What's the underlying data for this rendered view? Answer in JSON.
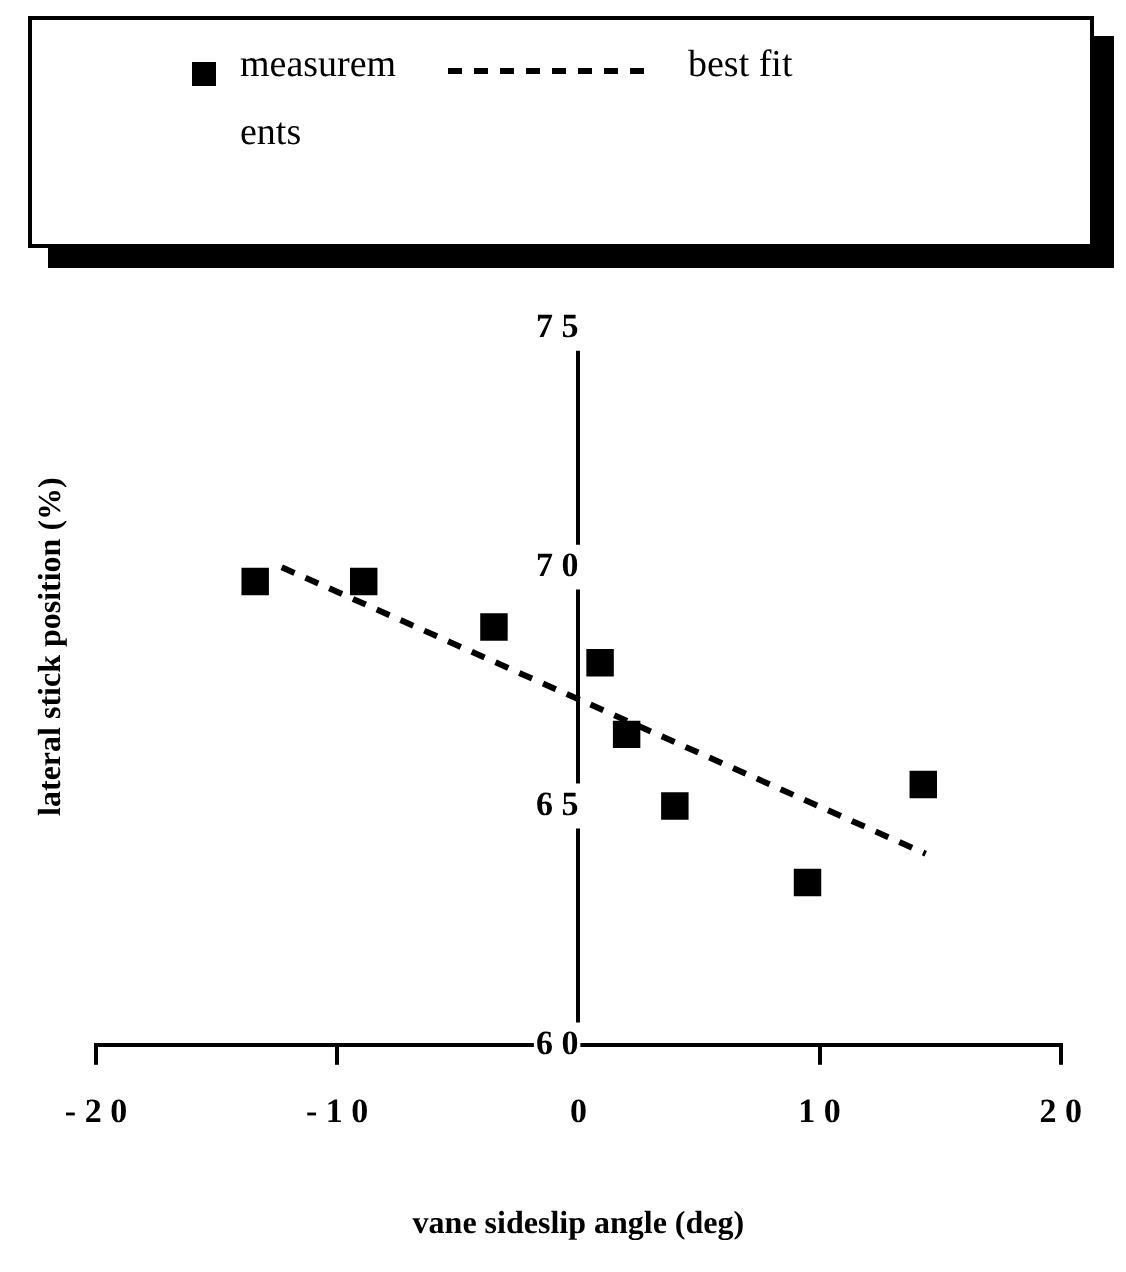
{
  "chart_data": {
    "type": "scatter",
    "xlabel": "vane sideslip angle (deg)",
    "ylabel": "lateral stick position (%)",
    "xlim": [
      -20,
      20
    ],
    "xticks": [
      -20,
      -10,
      0,
      10,
      20
    ],
    "ylim": [
      60,
      75
    ],
    "yticks": [
      60,
      65,
      70,
      75
    ],
    "grid": false,
    "legend": "top",
    "marker": "square",
    "series": [
      {
        "name": "measurements",
        "color": "#000000",
        "x": [
          -13.4,
          -8.9,
          -3.5,
          0.9,
          2.0,
          4.0,
          9.5,
          14.3
        ],
        "values": [
          69.7,
          69.7,
          68.75,
          68.0,
          66.5,
          65.0,
          63.4,
          65.45
        ]
      },
      {
        "name": "best fit",
        "color": "#000000",
        "type": "line",
        "line_style": "dashed",
        "marker": "none",
        "x": [
          -12.3,
          14.4
        ],
        "values": [
          70.0,
          64.0
        ]
      }
    ]
  }
}
